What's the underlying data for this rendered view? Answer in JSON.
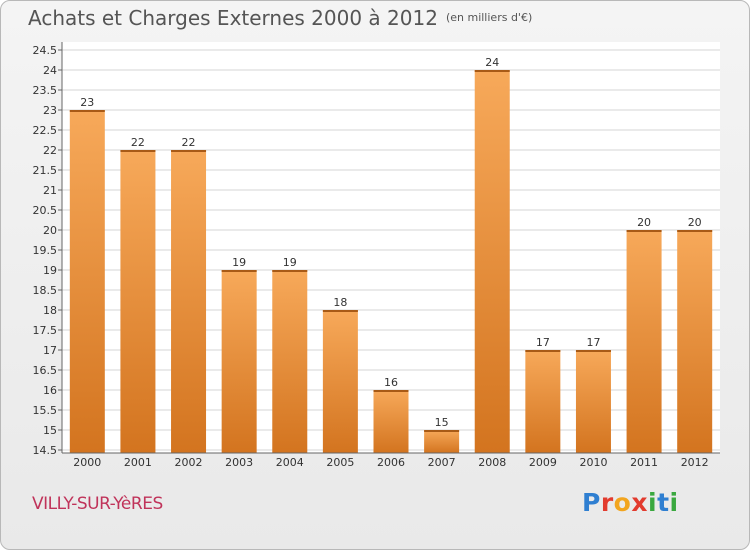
{
  "header": {
    "title": "Achats et Charges Externes 2000 à 2012",
    "subtitle": "(en milliers d'€)"
  },
  "footer": {
    "city": "VILLY-SUR-YèRES",
    "logo": {
      "letters": [
        "P",
        "r",
        "o",
        "x",
        "i",
        "t",
        "i"
      ],
      "colors": [
        "#2f7fd1",
        "#e23b2e",
        "#f2a51f",
        "#e23b2e",
        "#3aa83f",
        "#2f7fd1",
        "#3aa83f"
      ]
    }
  },
  "colors": {
    "bar_light": "#f7a95a",
    "bar_dark": "#d3741f",
    "grid": "#d4d4d4"
  },
  "chart_data": {
    "type": "bar",
    "title": "Achats et Charges Externes 2000 à 2012",
    "subtitle": "(en milliers d'€)",
    "xlabel": "",
    "ylabel": "",
    "categories": [
      "2000",
      "2001",
      "2002",
      "2003",
      "2004",
      "2005",
      "2006",
      "2007",
      "2008",
      "2009",
      "2010",
      "2011",
      "2012"
    ],
    "values": [
      23,
      22,
      22,
      19,
      19,
      18,
      16,
      15,
      24,
      17,
      17,
      20,
      20
    ],
    "ylim": [
      14.5,
      24.5
    ],
    "yticks": [
      "14.5",
      "15",
      "15.5",
      "16",
      "16.5",
      "17",
      "17.5",
      "18",
      "18.5",
      "19",
      "19.5",
      "20",
      "20.5",
      "21",
      "21.5",
      "22",
      "22.5",
      "23",
      "23.5",
      "24",
      "24.5"
    ],
    "grid": true,
    "legend": "none"
  }
}
